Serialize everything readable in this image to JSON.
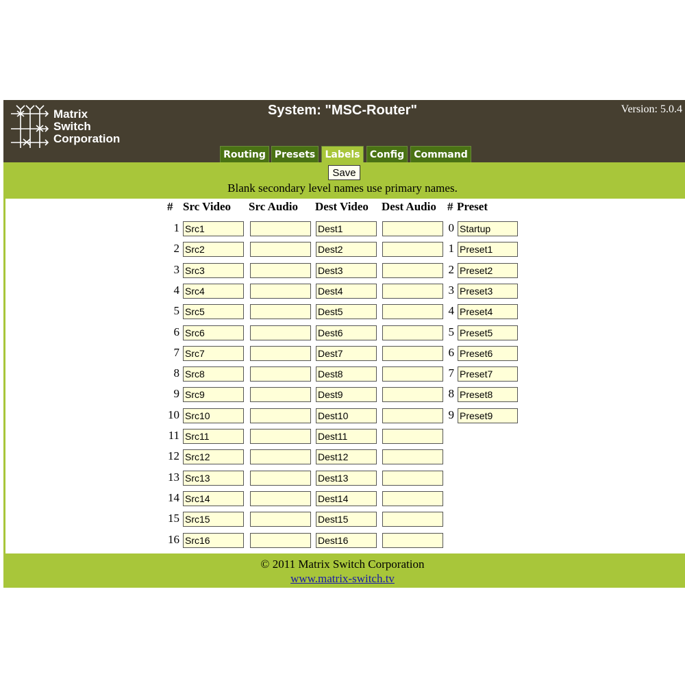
{
  "logo": {
    "text": "Matrix Switch Corporation",
    "line1": "Matrix",
    "line2": "Switch",
    "line3": "Corporation"
  },
  "header": {
    "title": "System: \"MSC-Router\"",
    "version": "Version: 5.0.4"
  },
  "tabs": [
    {
      "label": "Routing",
      "active": false
    },
    {
      "label": "Presets",
      "active": false
    },
    {
      "label": "Labels",
      "active": true
    },
    {
      "label": "Config",
      "active": false
    },
    {
      "label": "Command",
      "active": false
    }
  ],
  "save_label": "Save",
  "note": "Blank secondary level names use primary names.",
  "columns": {
    "num": "#",
    "src_video": "Src Video",
    "src_audio": "Src Audio",
    "dest_video": "Dest Video",
    "dest_audio": "Dest Audio",
    "preset_num": "#",
    "preset": "Preset"
  },
  "rows": [
    {
      "n": "1",
      "src_video": "Src1",
      "src_audio": "",
      "dest_video": "Dest1",
      "dest_audio": ""
    },
    {
      "n": "2",
      "src_video": "Src2",
      "src_audio": "",
      "dest_video": "Dest2",
      "dest_audio": ""
    },
    {
      "n": "3",
      "src_video": "Src3",
      "src_audio": "",
      "dest_video": "Dest3",
      "dest_audio": ""
    },
    {
      "n": "4",
      "src_video": "Src4",
      "src_audio": "",
      "dest_video": "Dest4",
      "dest_audio": ""
    },
    {
      "n": "5",
      "src_video": "Src5",
      "src_audio": "",
      "dest_video": "Dest5",
      "dest_audio": ""
    },
    {
      "n": "6",
      "src_video": "Src6",
      "src_audio": "",
      "dest_video": "Dest6",
      "dest_audio": ""
    },
    {
      "n": "7",
      "src_video": "Src7",
      "src_audio": "",
      "dest_video": "Dest7",
      "dest_audio": ""
    },
    {
      "n": "8",
      "src_video": "Src8",
      "src_audio": "",
      "dest_video": "Dest8",
      "dest_audio": ""
    },
    {
      "n": "9",
      "src_video": "Src9",
      "src_audio": "",
      "dest_video": "Dest9",
      "dest_audio": ""
    },
    {
      "n": "10",
      "src_video": "Src10",
      "src_audio": "",
      "dest_video": "Dest10",
      "dest_audio": ""
    },
    {
      "n": "11",
      "src_video": "Src11",
      "src_audio": "",
      "dest_video": "Dest11",
      "dest_audio": ""
    },
    {
      "n": "12",
      "src_video": "Src12",
      "src_audio": "",
      "dest_video": "Dest12",
      "dest_audio": ""
    },
    {
      "n": "13",
      "src_video": "Src13",
      "src_audio": "",
      "dest_video": "Dest13",
      "dest_audio": ""
    },
    {
      "n": "14",
      "src_video": "Src14",
      "src_audio": "",
      "dest_video": "Dest14",
      "dest_audio": ""
    },
    {
      "n": "15",
      "src_video": "Src15",
      "src_audio": "",
      "dest_video": "Dest15",
      "dest_audio": ""
    },
    {
      "n": "16",
      "src_video": "Src16",
      "src_audio": "",
      "dest_video": "Dest16",
      "dest_audio": ""
    }
  ],
  "presets": [
    {
      "n": "0",
      "name": "Startup"
    },
    {
      "n": "1",
      "name": "Preset1"
    },
    {
      "n": "2",
      "name": "Preset2"
    },
    {
      "n": "3",
      "name": "Preset3"
    },
    {
      "n": "4",
      "name": "Preset4"
    },
    {
      "n": "5",
      "name": "Preset5"
    },
    {
      "n": "6",
      "name": "Preset6"
    },
    {
      "n": "7",
      "name": "Preset7"
    },
    {
      "n": "8",
      "name": "Preset8"
    },
    {
      "n": "9",
      "name": "Preset9"
    }
  ],
  "footer": {
    "copyright": "© 2011 Matrix Switch Corporation",
    "link": "www.matrix-switch.tv"
  },
  "colors": {
    "header": "#463f30",
    "accent": "#a8c63a",
    "tab": "#4a7214",
    "input": "#ffffd8"
  }
}
